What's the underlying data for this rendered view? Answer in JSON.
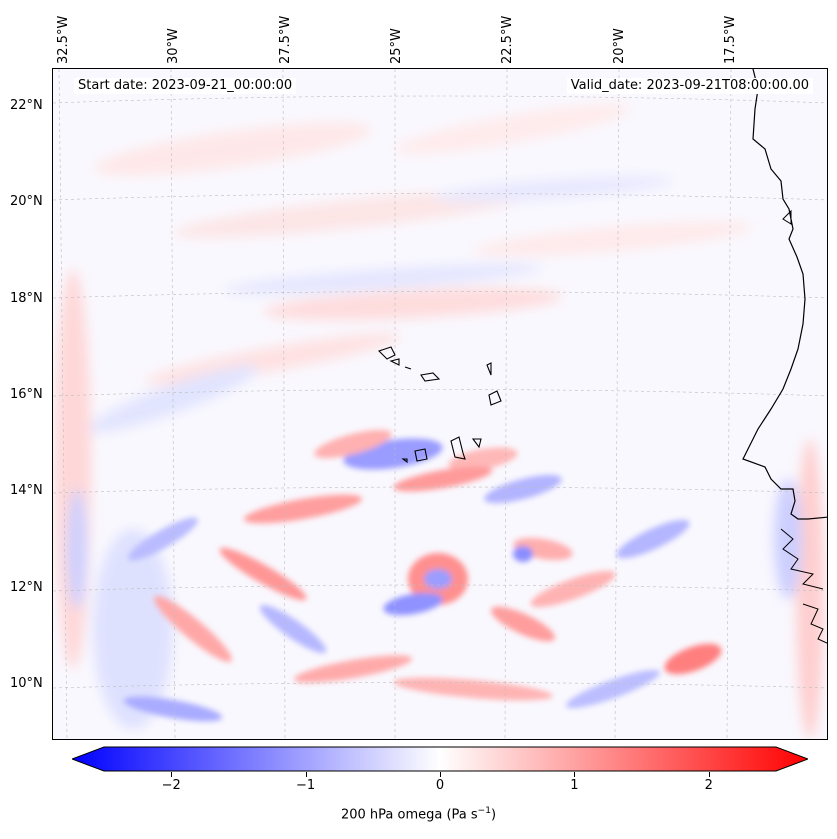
{
  "annotations": {
    "start_date": "Start date: 2023-09-21_00:00:00",
    "valid_date": "Valid_date: 2023-09-21T08:00:00.00"
  },
  "axes": {
    "longitude_labels": [
      "32.5°W",
      "30°W",
      "27.5°W",
      "25°W",
      "22.5°W",
      "20°W",
      "17.5°W"
    ],
    "latitude_labels": [
      "22°N",
      "20°N",
      "18°N",
      "16°N",
      "14°N",
      "12°N",
      "10°N"
    ]
  },
  "colorbar": {
    "label": "200 hPa omega (Pa s",
    "label_sup": "−1",
    "label_end": ")",
    "ticks": [
      "−2",
      "−1",
      "0",
      "1",
      "2"
    ],
    "tick_values": [
      -2,
      -1,
      0,
      1,
      2
    ],
    "range": [
      -2.75,
      2.75
    ],
    "colormap": "bwr",
    "low_color": "#0000ff",
    "high_color": "#ff0000"
  }
}
